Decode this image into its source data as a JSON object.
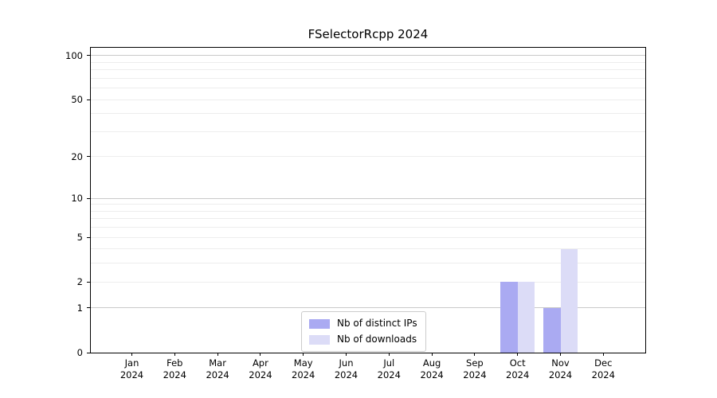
{
  "title": "FSelectorRcpp 2024",
  "chart_data": {
    "type": "bar",
    "title": "FSelectorRcpp 2024",
    "categories": [
      "Jan",
      "Feb",
      "Mar",
      "Apr",
      "May",
      "Jun",
      "Jul",
      "Aug",
      "Sep",
      "Oct",
      "Nov",
      "Dec"
    ],
    "year": "2024",
    "series": [
      {
        "name": "Nb of distinct IPs",
        "color": "#aaaaf2",
        "values": [
          0,
          0,
          0,
          0,
          0,
          0,
          0,
          0,
          0,
          2,
          1,
          0
        ]
      },
      {
        "name": "Nb of downloads",
        "color": "#dcdcf7",
        "values": [
          0,
          0,
          0,
          0,
          0,
          0,
          0,
          0,
          0,
          2,
          4,
          0
        ]
      }
    ],
    "yscale": "log1p",
    "yticks": [
      0,
      1,
      2,
      5,
      10,
      20,
      50,
      100
    ],
    "minor_yticks": [
      3,
      4,
      6,
      7,
      8,
      9,
      30,
      40,
      60,
      70,
      80,
      90
    ],
    "decade_ticks": [
      1,
      10,
      100
    ],
    "ylim": [
      0,
      113
    ],
    "xlabel": "",
    "ylabel": "",
    "grid": "horizontal",
    "legend_position": "lower center"
  }
}
